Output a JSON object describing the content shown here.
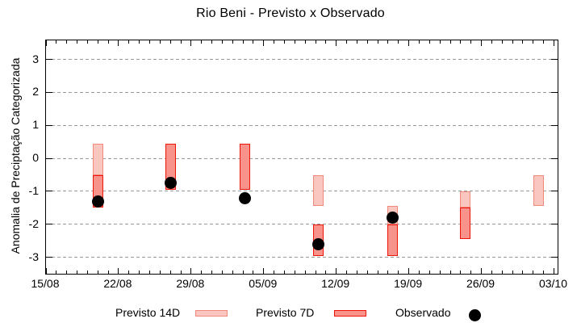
{
  "chart": {
    "title": "Rio Beni - Previsto x Observado",
    "ylabel": "Anomalia de Preciptação Categorizada",
    "legend": {
      "p14_label": "Previsto 14D",
      "p7_label": "Previsto 7D",
      "obs_label": "Observado"
    }
  },
  "chart_data": {
    "type": "bar",
    "subtype": "weekly range-bars (forecast intervals) with scatter overlay (observed)",
    "title": "Rio Beni - Previsto x Observado",
    "xlabel": "",
    "ylabel": "Anomalia de Preciptação Categorizada",
    "x_axis": {
      "tick_labels": [
        "15/08",
        "22/08",
        "29/08",
        "05/09",
        "12/09",
        "19/09",
        "26/09",
        "03/10"
      ],
      "tick_days": [
        0,
        7,
        14,
        21,
        28,
        35,
        42,
        49
      ],
      "minor_tick_interval_days": 1,
      "xlim_days": [
        0,
        49.35
      ]
    },
    "y_axis": {
      "ticks": [
        3,
        2,
        1,
        0,
        -1,
        -2,
        -3
      ],
      "ylim": [
        -3.5,
        3.58
      ],
      "grid": "horizontal dashed lines at integer ticks"
    },
    "bar_width_days": 1,
    "legend_position": "below plot",
    "series": [
      {
        "name": "Previsto 14D",
        "type": "range-bar",
        "fill": "#fac6c0",
        "border": "#f0897b",
        "bars": [
          {
            "day": 5.0,
            "date_est": "20/08",
            "lo": -0.5,
            "hi": 0.45
          },
          {
            "day": 26.3,
            "date_est": "10/09",
            "lo": -1.45,
            "hi": -0.5
          },
          {
            "day": 33.4,
            "date_est": "17/09",
            "lo": -2.0,
            "hi": -1.45
          },
          {
            "day": 40.4,
            "date_est": "24/09",
            "lo": -1.5,
            "hi": -1.0
          },
          {
            "day": 47.5,
            "date_est": "01/10",
            "lo": -1.45,
            "hi": -0.5
          }
        ]
      },
      {
        "name": "Previsto 7D",
        "type": "range-bar",
        "fill": "#f7938b",
        "border": "#ee1408",
        "bars": [
          {
            "day": 5.0,
            "date_est": "20/08",
            "lo": -1.5,
            "hi": -0.5
          },
          {
            "day": 12.0,
            "date_est": "27/08",
            "lo": -0.95,
            "hi": 0.45
          },
          {
            "day": 19.2,
            "date_est": "03/09",
            "lo": -0.95,
            "hi": 0.45
          },
          {
            "day": 26.3,
            "date_est": "10/09",
            "lo": -2.95,
            "hi": -2.0
          },
          {
            "day": 33.4,
            "date_est": "17/09",
            "lo": -2.95,
            "hi": -2.0
          },
          {
            "day": 40.4,
            "date_est": "24/09",
            "lo": -2.45,
            "hi": -1.5
          }
        ]
      },
      {
        "name": "Observado",
        "type": "scatter",
        "color": "#000000",
        "marker": "filled-circle",
        "points": [
          {
            "day": 5.0,
            "date_est": "20/08",
            "value": -1.3
          },
          {
            "day": 12.0,
            "date_est": "27/08",
            "value": -0.75
          },
          {
            "day": 19.2,
            "date_est": "03/09",
            "value": -1.2
          },
          {
            "day": 26.3,
            "date_est": "10/09",
            "value": -2.6
          },
          {
            "day": 33.4,
            "date_est": "17/09",
            "value": -1.8
          }
        ]
      }
    ],
    "colors": {
      "grid": "#9a9a9a",
      "axis": "#000000",
      "text": "#000000",
      "background": "#ffffff"
    }
  }
}
